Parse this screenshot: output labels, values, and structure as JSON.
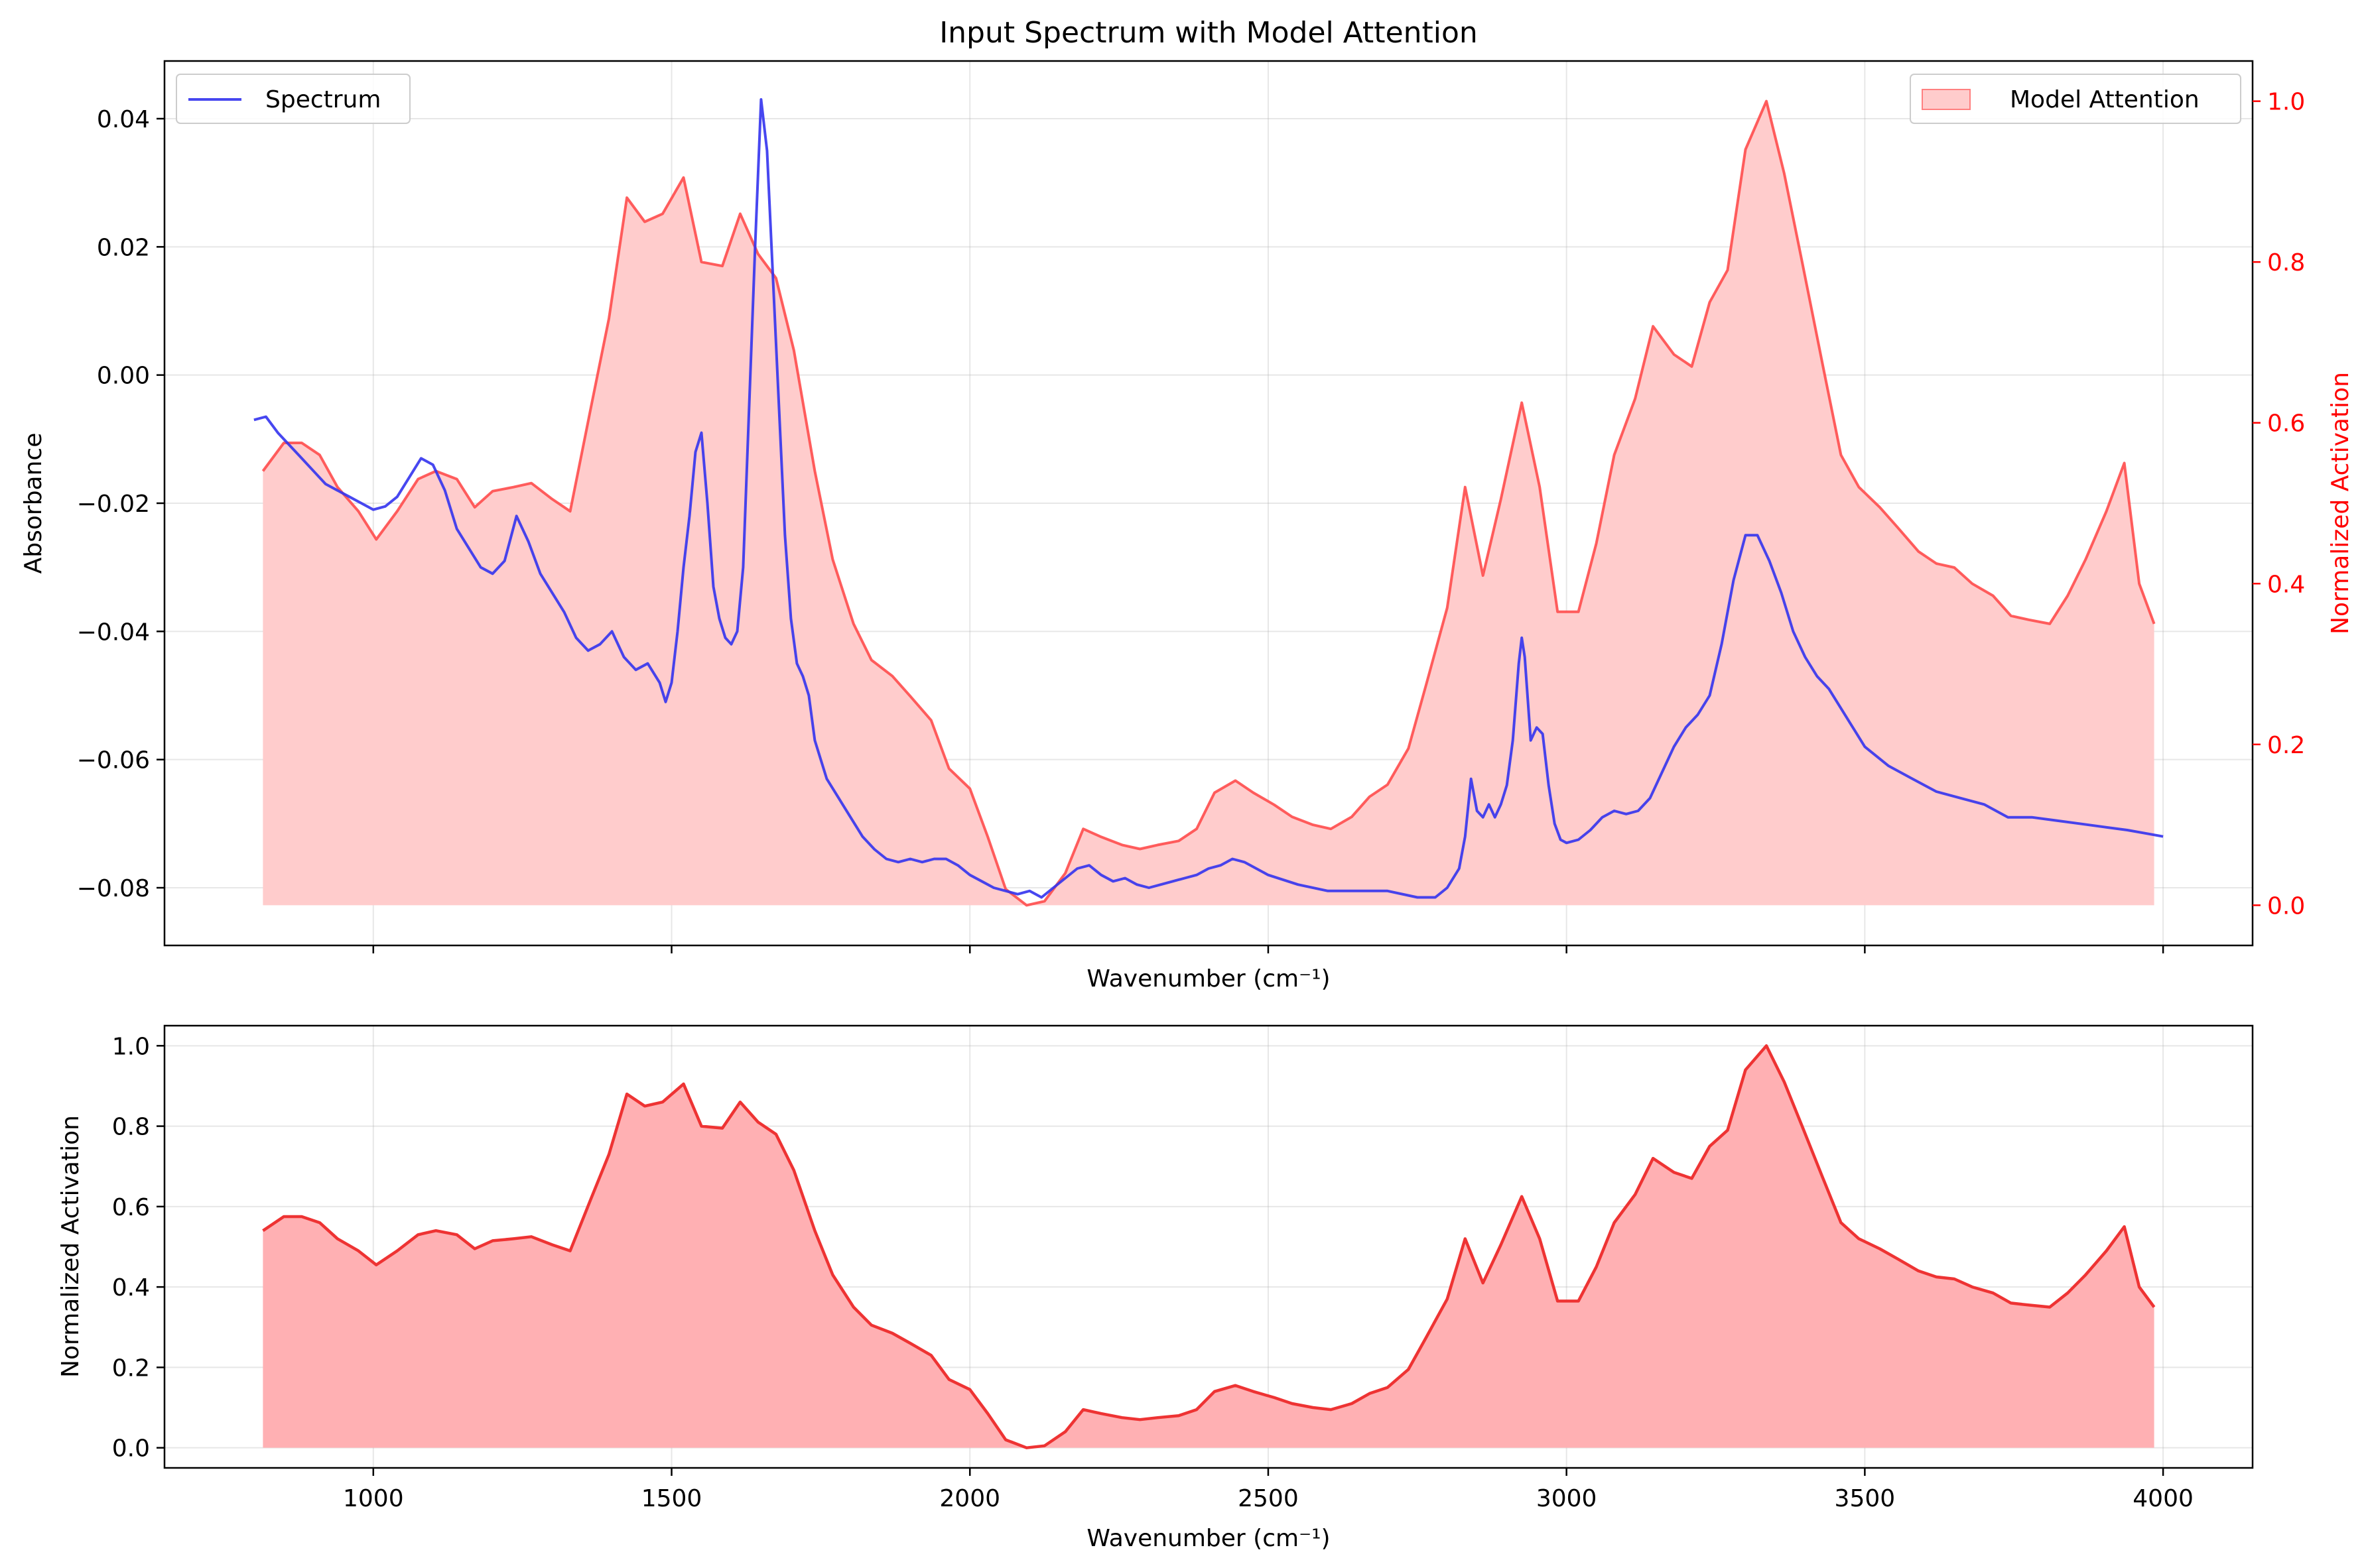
{
  "figure": {
    "title": "Input Spectrum with Model Attention"
  },
  "chart_data": [
    {
      "type": "line",
      "panel": "top",
      "title": "Input Spectrum with Model Attention",
      "xlabel": "Wavenumber (cm⁻¹)",
      "ylabel": "Absorbance",
      "ylabel_right": "Normalized Activation",
      "xlim": [
        650,
        4150
      ],
      "ylim": [
        -0.089,
        0.049
      ],
      "ylim_right": [
        -0.05,
        1.05
      ],
      "xticks": [
        1000,
        1500,
        2000,
        2500,
        3000,
        3500,
        4000
      ],
      "yticks": [
        -0.08,
        -0.06,
        -0.04,
        -0.02,
        0.0,
        0.02,
        0.04
      ],
      "ytick_labels": [
        "−0.08",
        "−0.06",
        "−0.04",
        "−0.02",
        "0.00",
        "0.02",
        "0.04"
      ],
      "yticks_right": [
        0.0,
        0.2,
        0.4,
        0.6,
        0.8,
        1.0
      ],
      "ytick_labels_right": [
        "0.0",
        "0.2",
        "0.4",
        "0.6",
        "0.8",
        "1.0"
      ],
      "grid": true,
      "series": [
        {
          "name": "Spectrum",
          "axis": "left",
          "color": "#3333ee",
          "x": [
            800,
            820,
            840,
            860,
            880,
            900,
            920,
            940,
            960,
            980,
            1000,
            1020,
            1040,
            1060,
            1080,
            1100,
            1120,
            1140,
            1160,
            1180,
            1200,
            1220,
            1240,
            1260,
            1280,
            1300,
            1320,
            1340,
            1360,
            1380,
            1400,
            1420,
            1440,
            1460,
            1480,
            1490,
            1500,
            1510,
            1520,
            1530,
            1540,
            1550,
            1560,
            1570,
            1580,
            1590,
            1600,
            1610,
            1620,
            1630,
            1640,
            1650,
            1660,
            1670,
            1680,
            1690,
            1700,
            1710,
            1720,
            1730,
            1740,
            1760,
            1780,
            1800,
            1820,
            1840,
            1860,
            1880,
            1900,
            1920,
            1940,
            1960,
            1980,
            2000,
            2020,
            2040,
            2060,
            2080,
            2100,
            2120,
            2140,
            2160,
            2180,
            2200,
            2220,
            2240,
            2260,
            2280,
            2300,
            2320,
            2340,
            2360,
            2380,
            2400,
            2420,
            2440,
            2460,
            2480,
            2500,
            2550,
            2600,
            2650,
            2700,
            2750,
            2780,
            2800,
            2820,
            2830,
            2840,
            2850,
            2860,
            2870,
            2880,
            2890,
            2900,
            2910,
            2920,
            2925,
            2930,
            2940,
            2950,
            2960,
            2970,
            2980,
            2990,
            3000,
            3020,
            3040,
            3060,
            3080,
            3100,
            3120,
            3140,
            3160,
            3180,
            3200,
            3220,
            3240,
            3260,
            3280,
            3300,
            3320,
            3340,
            3360,
            3380,
            3400,
            3420,
            3440,
            3460,
            3480,
            3500,
            3540,
            3580,
            3620,
            3660,
            3700,
            3740,
            3780,
            3820,
            3860,
            3900,
            3940,
            3970,
            4000
          ],
          "values": [
            -0.007,
            -0.0065,
            -0.009,
            -0.011,
            -0.013,
            -0.015,
            -0.017,
            -0.018,
            -0.019,
            -0.02,
            -0.021,
            -0.0205,
            -0.019,
            -0.016,
            -0.013,
            -0.014,
            -0.018,
            -0.024,
            -0.027,
            -0.03,
            -0.031,
            -0.029,
            -0.022,
            -0.026,
            -0.031,
            -0.034,
            -0.037,
            -0.041,
            -0.043,
            -0.042,
            -0.04,
            -0.044,
            -0.046,
            -0.045,
            -0.048,
            -0.051,
            -0.048,
            -0.04,
            -0.03,
            -0.022,
            -0.012,
            -0.009,
            -0.02,
            -0.033,
            -0.038,
            -0.041,
            -0.042,
            -0.04,
            -0.03,
            -0.005,
            0.02,
            0.043,
            0.035,
            0.015,
            -0.005,
            -0.025,
            -0.038,
            -0.045,
            -0.047,
            -0.05,
            -0.057,
            -0.063,
            -0.066,
            -0.069,
            -0.072,
            -0.074,
            -0.0755,
            -0.076,
            -0.0755,
            -0.076,
            -0.0755,
            -0.0755,
            -0.0765,
            -0.078,
            -0.079,
            -0.08,
            -0.0805,
            -0.081,
            -0.0805,
            -0.0815,
            -0.08,
            -0.0785,
            -0.077,
            -0.0765,
            -0.078,
            -0.079,
            -0.0785,
            -0.0795,
            -0.08,
            -0.0795,
            -0.079,
            -0.0785,
            -0.078,
            -0.077,
            -0.0765,
            -0.0755,
            -0.076,
            -0.077,
            -0.078,
            -0.0795,
            -0.0805,
            -0.0805,
            -0.0805,
            -0.0815,
            -0.0815,
            -0.08,
            -0.077,
            -0.072,
            -0.063,
            -0.068,
            -0.069,
            -0.067,
            -0.069,
            -0.067,
            -0.064,
            -0.057,
            -0.045,
            -0.041,
            -0.044,
            -0.057,
            -0.055,
            -0.056,
            -0.064,
            -0.07,
            -0.0725,
            -0.073,
            -0.0725,
            -0.071,
            -0.069,
            -0.068,
            -0.0685,
            -0.068,
            -0.066,
            -0.062,
            -0.058,
            -0.055,
            -0.053,
            -0.05,
            -0.042,
            -0.032,
            -0.025,
            -0.025,
            -0.029,
            -0.034,
            -0.04,
            -0.044,
            -0.047,
            -0.049,
            -0.052,
            -0.055,
            -0.058,
            -0.061,
            -0.063,
            -0.065,
            -0.066,
            -0.067,
            -0.069,
            -0.069,
            -0.0695,
            -0.07,
            -0.0705,
            -0.071,
            -0.0715,
            -0.072
          ]
        },
        {
          "name": "Model Attention",
          "axis": "right",
          "color": "#ff4d4d",
          "fill": "#ffcccc",
          "x": [
            815,
            850,
            880,
            910,
            940,
            975,
            1005,
            1040,
            1075,
            1105,
            1140,
            1170,
            1200,
            1235,
            1265,
            1300,
            1330,
            1365,
            1395,
            1425,
            1455,
            1485,
            1520,
            1550,
            1585,
            1615,
            1645,
            1675,
            1705,
            1740,
            1770,
            1805,
            1835,
            1870,
            1900,
            1935,
            1965,
            2000,
            2030,
            2060,
            2095,
            2125,
            2160,
            2190,
            2220,
            2255,
            2285,
            2315,
            2350,
            2380,
            2410,
            2445,
            2475,
            2510,
            2540,
            2575,
            2605,
            2640,
            2670,
            2700,
            2735,
            2765,
            2800,
            2830,
            2860,
            2890,
            2925,
            2955,
            2985,
            3020,
            3050,
            3080,
            3115,
            3145,
            3180,
            3210,
            3240,
            3270,
            3300,
            3335,
            3365,
            3395,
            3430,
            3460,
            3490,
            3525,
            3555,
            3590,
            3620,
            3650,
            3680,
            3715,
            3745,
            3775,
            3810,
            3840,
            3870,
            3905,
            3935,
            3960,
            3985
          ],
          "values": [
            0.54,
            0.575,
            0.575,
            0.56,
            0.52,
            0.49,
            0.455,
            0.49,
            0.53,
            0.54,
            0.53,
            0.495,
            0.515,
            0.52,
            0.525,
            0.505,
            0.49,
            0.62,
            0.73,
            0.88,
            0.85,
            0.86,
            0.905,
            0.8,
            0.795,
            0.86,
            0.81,
            0.78,
            0.69,
            0.54,
            0.43,
            0.35,
            0.305,
            0.285,
            0.26,
            0.23,
            0.17,
            0.145,
            0.085,
            0.02,
            0.0,
            0.005,
            0.04,
            0.095,
            0.085,
            0.075,
            0.07,
            0.075,
            0.08,
            0.095,
            0.14,
            0.155,
            0.14,
            0.125,
            0.11,
            0.1,
            0.095,
            0.11,
            0.135,
            0.15,
            0.195,
            0.275,
            0.37,
            0.52,
            0.41,
            0.505,
            0.625,
            0.52,
            0.365,
            0.365,
            0.45,
            0.56,
            0.63,
            0.72,
            0.685,
            0.67,
            0.75,
            0.79,
            0.94,
            1.0,
            0.91,
            0.8,
            0.67,
            0.56,
            0.52,
            0.495,
            0.47,
            0.44,
            0.425,
            0.42,
            0.4,
            0.385,
            0.36,
            0.355,
            0.35,
            0.385,
            0.43,
            0.49,
            0.55,
            0.4,
            0.35
          ]
        }
      ],
      "legend": [
        {
          "label": "Spectrum",
          "position": "top-left"
        },
        {
          "label": "Model Attention",
          "position": "top-right"
        }
      ]
    },
    {
      "type": "area",
      "panel": "bottom",
      "xlabel": "Wavenumber (cm⁻¹)",
      "ylabel": "Normalized Activation",
      "xlim": [
        650,
        4150
      ],
      "ylim": [
        -0.05,
        1.05
      ],
      "xticks": [
        1000,
        1500,
        2000,
        2500,
        3000,
        3500,
        4000
      ],
      "xtick_labels": [
        "1000",
        "1500",
        "2000",
        "2500",
        "3000",
        "3500",
        "4000"
      ],
      "yticks": [
        0.0,
        0.2,
        0.4,
        0.6,
        0.8,
        1.0
      ],
      "ytick_labels": [
        "0.0",
        "0.2",
        "0.4",
        "0.6",
        "0.8",
        "1.0"
      ],
      "grid": true,
      "series": [
        {
          "same_as": "Model Attention",
          "color": "#ee3333",
          "fill": "#ffb0b3"
        }
      ]
    }
  ]
}
